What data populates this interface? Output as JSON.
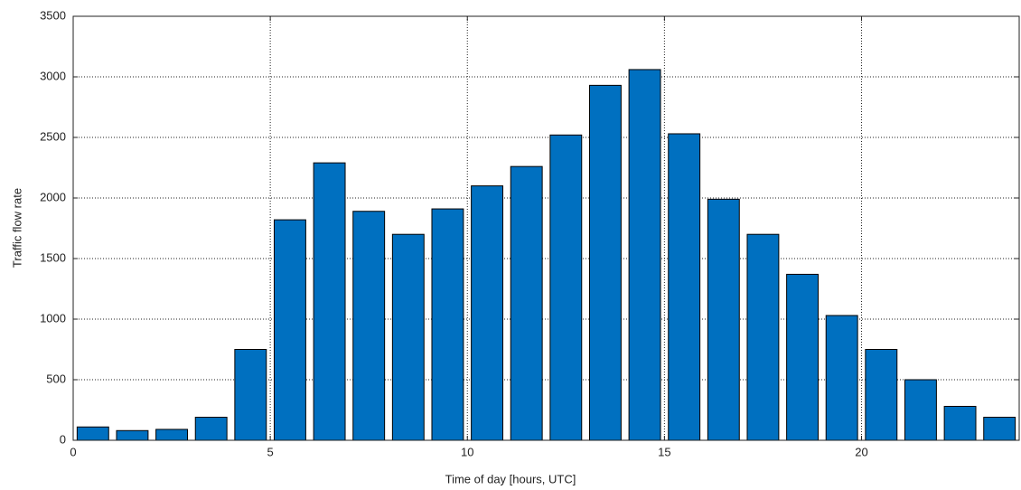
{
  "chart_data": {
    "type": "bar",
    "x_label": "Time of day [hours, UTC]",
    "y_label": "Traffic flow rate",
    "x": [
      0.5,
      1.5,
      2.5,
      3.5,
      4.5,
      5.5,
      6.5,
      7.5,
      8.5,
      9.5,
      10.5,
      11.5,
      12.5,
      13.5,
      14.5,
      15.5,
      16.5,
      17.5,
      18.5,
      19.5,
      20.5,
      21.5,
      22.5,
      23.5
    ],
    "values": [
      110,
      80,
      90,
      190,
      750,
      1820,
      2290,
      1890,
      1700,
      1910,
      2100,
      2260,
      2520,
      2930,
      3060,
      2530,
      1990,
      1700,
      1370,
      1030,
      750,
      500,
      280,
      190
    ],
    "color": "#0070c0",
    "xlim": [
      0,
      24
    ],
    "xticks": [
      0,
      5,
      10,
      15,
      20
    ],
    "ylim": [
      0,
      3500
    ],
    "yticks": [
      0,
      500,
      1000,
      1500,
      2000,
      2500,
      3000,
      3500
    ],
    "grid": true
  }
}
